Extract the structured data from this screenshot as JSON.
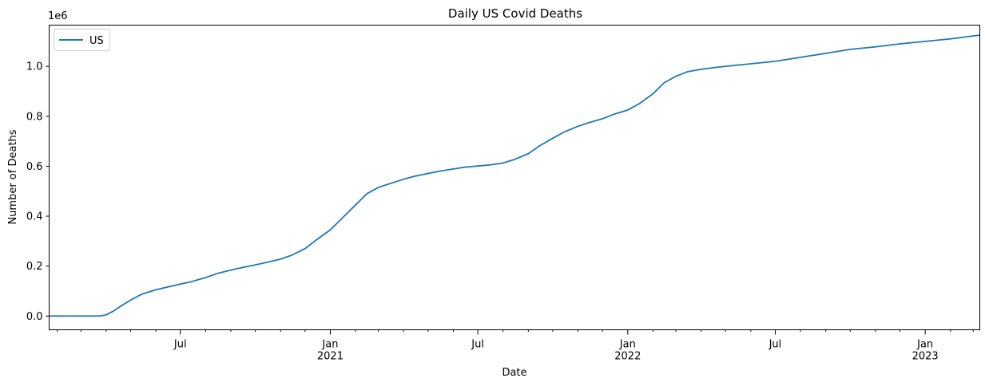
{
  "chart_data": {
    "type": "line",
    "title": "Daily US Covid Deaths",
    "xlabel": "Date",
    "ylabel": "Number of Deaths",
    "y_offset_label": "1e6",
    "xlim": [
      "2020-01-22",
      "2023-03-09"
    ],
    "ylim": [
      -0.055,
      1.165
    ],
    "y_ticks": [
      0.0,
      0.2,
      0.4,
      0.6,
      0.8,
      1.0
    ],
    "y_tick_labels": [
      "0.0",
      "0.2",
      "0.4",
      "0.6",
      "0.8",
      "1.0"
    ],
    "x_major_ticks": [
      {
        "date": "2020-07-01",
        "labels": [
          "Jul"
        ]
      },
      {
        "date": "2021-01-01",
        "labels": [
          "Jan",
          "2021"
        ]
      },
      {
        "date": "2021-07-01",
        "labels": [
          "Jul"
        ]
      },
      {
        "date": "2022-01-01",
        "labels": [
          "Jan",
          "2022"
        ]
      },
      {
        "date": "2022-07-01",
        "labels": [
          "Jul"
        ]
      },
      {
        "date": "2023-01-01",
        "labels": [
          "Jan",
          "2023"
        ]
      }
    ],
    "x_minor_ticks": [
      "2020-02-01",
      "2020-03-01",
      "2020-04-01",
      "2020-05-01",
      "2020-06-01",
      "2020-08-01",
      "2020-09-01",
      "2020-10-01",
      "2020-11-01",
      "2020-12-01",
      "2021-02-01",
      "2021-03-01",
      "2021-04-01",
      "2021-05-01",
      "2021-06-01",
      "2021-08-01",
      "2021-09-01",
      "2021-10-01",
      "2021-11-01",
      "2021-12-01",
      "2022-02-01",
      "2022-03-01",
      "2022-04-01",
      "2022-05-01",
      "2022-06-01",
      "2022-08-01",
      "2022-09-01",
      "2022-10-01",
      "2022-11-01",
      "2022-12-01",
      "2023-02-01",
      "2023-03-01"
    ],
    "legend": {
      "position": "top-left"
    },
    "grid": false,
    "series": [
      {
        "name": "US",
        "color": "#1f77b4",
        "x": [
          "2020-01-22",
          "2020-03-01",
          "2020-03-15",
          "2020-03-25",
          "2020-04-01",
          "2020-04-10",
          "2020-04-20",
          "2020-05-01",
          "2020-05-15",
          "2020-06-01",
          "2020-06-15",
          "2020-07-01",
          "2020-07-15",
          "2020-08-01",
          "2020-08-15",
          "2020-09-01",
          "2020-09-15",
          "2020-10-01",
          "2020-10-15",
          "2020-11-01",
          "2020-11-15",
          "2020-12-01",
          "2020-12-15",
          "2021-01-01",
          "2021-01-15",
          "2021-02-01",
          "2021-02-15",
          "2021-03-01",
          "2021-03-15",
          "2021-04-01",
          "2021-04-15",
          "2021-05-01",
          "2021-05-15",
          "2021-06-01",
          "2021-06-15",
          "2021-07-01",
          "2021-07-15",
          "2021-08-01",
          "2021-08-15",
          "2021-09-01",
          "2021-09-15",
          "2021-10-01",
          "2021-10-15",
          "2021-11-01",
          "2021-11-15",
          "2021-12-01",
          "2021-12-15",
          "2022-01-01",
          "2022-01-15",
          "2022-02-01",
          "2022-02-15",
          "2022-03-01",
          "2022-03-15",
          "2022-04-01",
          "2022-04-15",
          "2022-05-01",
          "2022-06-01",
          "2022-07-01",
          "2022-08-01",
          "2022-09-01",
          "2022-10-01",
          "2022-11-01",
          "2022-12-01",
          "2023-01-01",
          "2023-02-01",
          "2023-03-09"
        ],
        "values": [
          0.0,
          0.0,
          0.0,
          0.0005,
          0.005,
          0.02,
          0.042,
          0.064,
          0.088,
          0.105,
          0.116,
          0.128,
          0.138,
          0.154,
          0.17,
          0.184,
          0.194,
          0.205,
          0.215,
          0.228,
          0.244,
          0.27,
          0.305,
          0.345,
          0.39,
          0.445,
          0.49,
          0.515,
          0.53,
          0.548,
          0.56,
          0.571,
          0.58,
          0.589,
          0.596,
          0.601,
          0.605,
          0.613,
          0.627,
          0.65,
          0.682,
          0.712,
          0.737,
          0.76,
          0.775,
          0.79,
          0.808,
          0.825,
          0.85,
          0.89,
          0.935,
          0.96,
          0.978,
          0.988,
          0.994,
          1.0,
          1.01,
          1.02,
          1.036,
          1.052,
          1.068,
          1.078,
          1.09,
          1.1,
          1.11,
          1.125
        ]
      }
    ]
  }
}
